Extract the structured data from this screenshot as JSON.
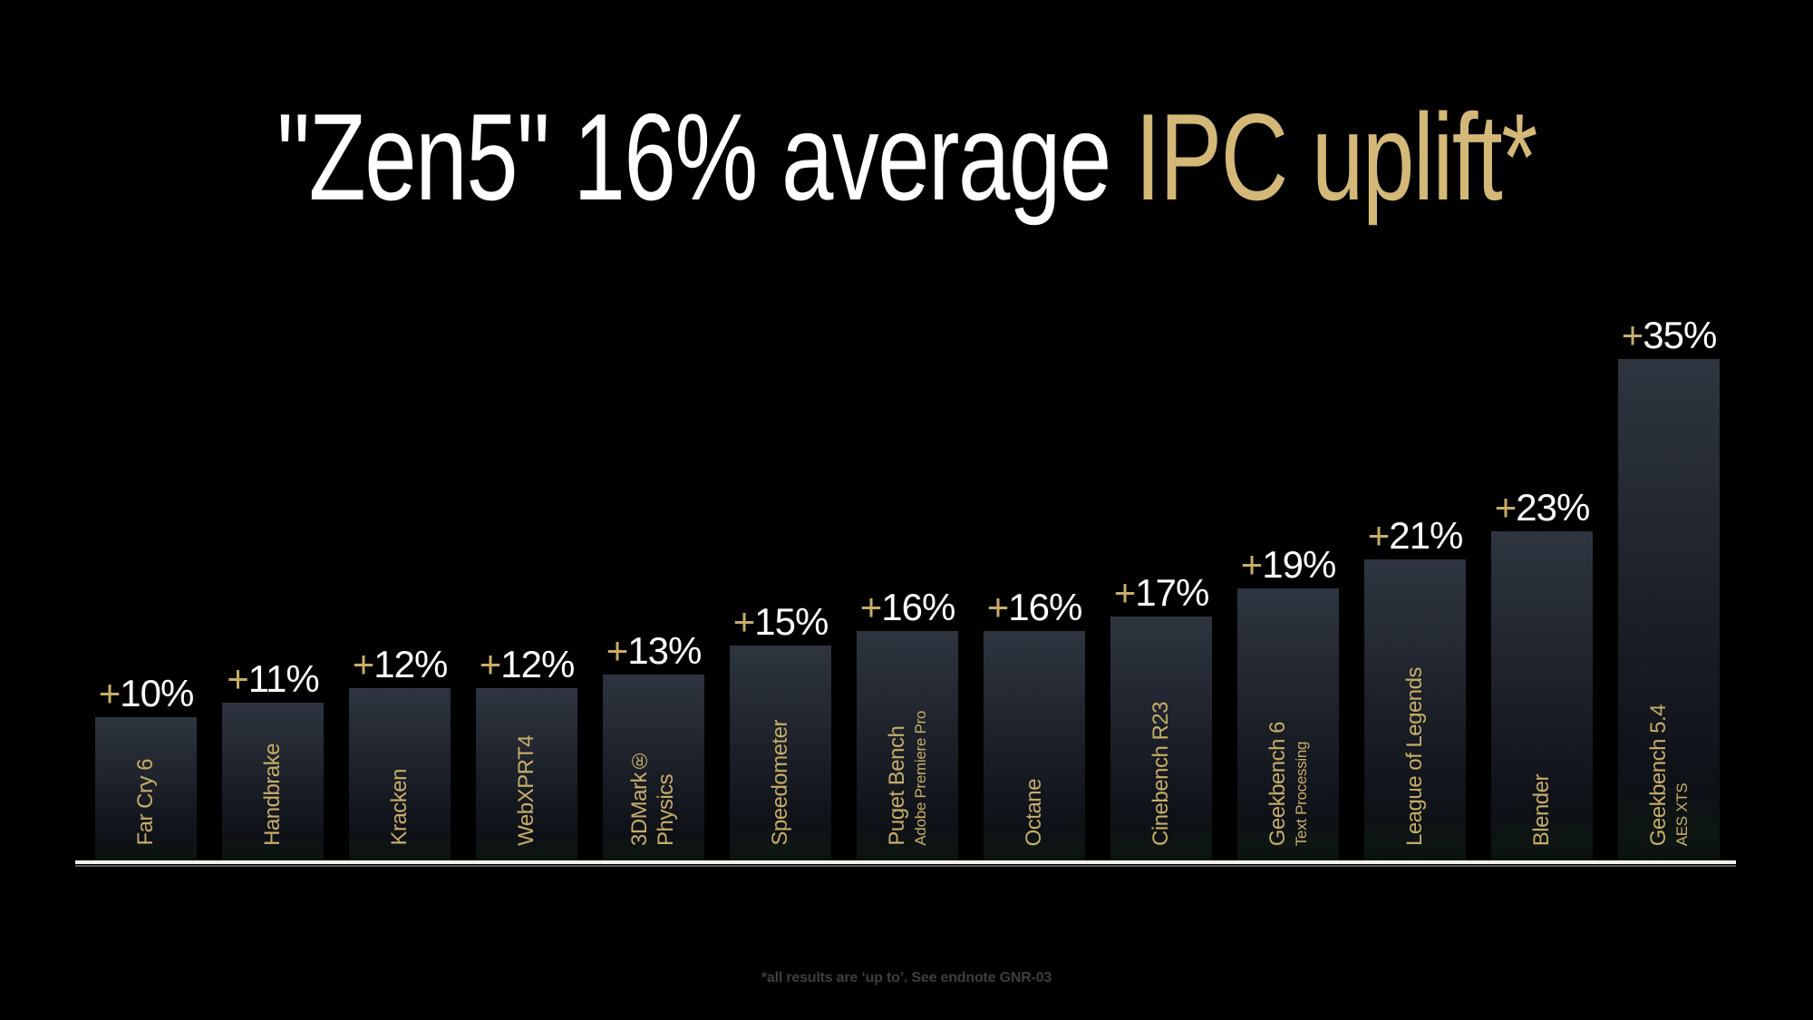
{
  "title": {
    "white": "\"Zen5\" 16% average ",
    "gold": "IPC uplift*"
  },
  "footnote": "*all results are ‘up to’. See endnote GNR-03",
  "colors": {
    "background": "#000000",
    "title_white": "#ffffff",
    "accent_gold": "#d3b877",
    "bar_label_gold": "#c8ad68",
    "value_text": "#ffffff",
    "bar_gradient_top": "#2f3540",
    "bar_gradient_bottom": "#0b1310",
    "baseline": "#f4f2ec",
    "footnote_text": "#3e3e3e"
  },
  "chart_data": {
    "type": "bar",
    "title": "\"Zen5\" 16% average IPC uplift*",
    "average_uplift_percent": 16,
    "value_prefix": "+",
    "value_suffix": "%",
    "xlabel": "",
    "ylabel": "",
    "ylim": [
      0,
      37
    ],
    "grid": false,
    "legend": "none",
    "categories": [
      "Far Cry 6",
      "Handbrake",
      "Kracken",
      "WebXPRT4",
      "3DMark® Physics",
      "Speedometer",
      "Puget Bench",
      "Octane",
      "Cinebench R23",
      "Geekbench 6",
      "League of Legends",
      "Blender",
      "Geekbench 5.4"
    ],
    "values": [
      10,
      11,
      12,
      12,
      13,
      15,
      16,
      16,
      17,
      19,
      21,
      23,
      35
    ],
    "bars": [
      {
        "label": "Far Cry 6",
        "sublabel": "",
        "value": 10
      },
      {
        "label": "Handbrake",
        "sublabel": "",
        "value": 11
      },
      {
        "label": "Kracken",
        "sublabel": "",
        "value": 12
      },
      {
        "label": "WebXPRT4",
        "sublabel": "",
        "value": 12
      },
      {
        "label": "3DMark® Physics",
        "sublabel": "",
        "value": 13
      },
      {
        "label": "Speedometer",
        "sublabel": "",
        "value": 15
      },
      {
        "label": "Puget Bench",
        "sublabel": "Adobe Premiere Pro",
        "value": 16
      },
      {
        "label": "Octane",
        "sublabel": "",
        "value": 16
      },
      {
        "label": "Cinebench R23",
        "sublabel": "",
        "value": 17
      },
      {
        "label": "Geekbench 6",
        "sublabel": "Text Processing",
        "value": 19
      },
      {
        "label": "League of Legends",
        "sublabel": "",
        "value": 21
      },
      {
        "label": "Blender",
        "sublabel": "",
        "value": 23
      },
      {
        "label": "Geekbench 5.4",
        "sublabel": "AES XTS",
        "value": 35
      }
    ]
  }
}
